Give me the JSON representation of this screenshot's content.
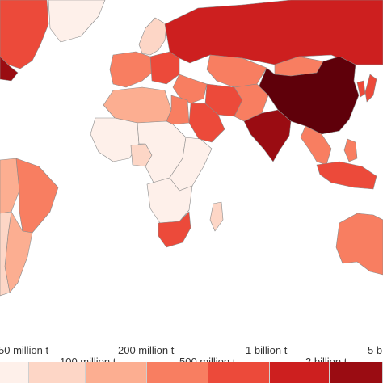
{
  "colors": {
    "ocean": "#ffffff",
    "border": "#8a8a8a",
    "scale": [
      "#fef0ea",
      "#fdd6c6",
      "#fcae91",
      "#f87e61",
      "#ec4a3a",
      "#cd1f1f",
      "#9a0c12",
      "#5f000a"
    ]
  },
  "legend": {
    "labels": [
      "50 million t",
      "100 million t",
      "200 million t",
      "500 million t",
      "1 billion t",
      "2 billion t",
      "5 b"
    ]
  },
  "regions": [
    {
      "name": "china",
      "level": 7
    },
    {
      "name": "russia",
      "level": 5
    },
    {
      "name": "india",
      "level": 6
    },
    {
      "name": "usa",
      "level": 6
    },
    {
      "name": "canada",
      "level": 4
    },
    {
      "name": "greenland",
      "level": 0
    },
    {
      "name": "europe-west",
      "level": 3
    },
    {
      "name": "europe-east",
      "level": 4
    },
    {
      "name": "scandinavia",
      "level": 1
    },
    {
      "name": "kazakhstan",
      "level": 3
    },
    {
      "name": "iran",
      "level": 4
    },
    {
      "name": "saudi-arabia",
      "level": 4
    },
    {
      "name": "middle-east",
      "level": 3
    },
    {
      "name": "egypt",
      "level": 3
    },
    {
      "name": "north-africa",
      "level": 2
    },
    {
      "name": "west-africa",
      "level": 0
    },
    {
      "name": "central-africa",
      "level": 0
    },
    {
      "name": "nigeria",
      "level": 1
    },
    {
      "name": "east-africa",
      "level": 0
    },
    {
      "name": "southern-africa",
      "level": 0
    },
    {
      "name": "south-africa",
      "level": 4
    },
    {
      "name": "madagascar",
      "level": 1
    },
    {
      "name": "mongolia",
      "level": 3
    },
    {
      "name": "pakistan",
      "level": 3
    },
    {
      "name": "southeast-asia",
      "level": 3
    },
    {
      "name": "japan",
      "level": 4
    },
    {
      "name": "korea",
      "level": 4
    },
    {
      "name": "indonesia",
      "level": 4
    },
    {
      "name": "philippines",
      "level": 3
    },
    {
      "name": "australia",
      "level": 3
    },
    {
      "name": "brazil",
      "level": 3
    },
    {
      "name": "argentina",
      "level": 2
    },
    {
      "name": "andes",
      "level": 2
    },
    {
      "name": "chile",
      "level": 1
    }
  ]
}
